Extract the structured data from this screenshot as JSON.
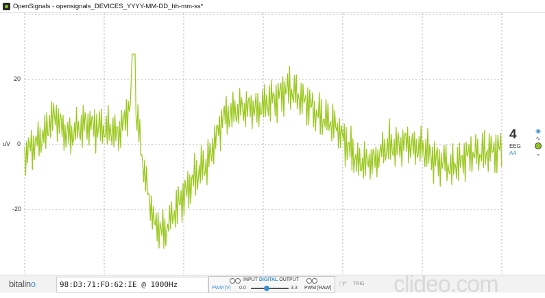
{
  "window": {
    "title": "OpenSignals - opensignals_DEVICES_YYYY-MM-DD_hh-mm-ss*"
  },
  "plot": {
    "y_axis_unit": "uV",
    "y_ticks": [
      "20",
      "0",
      "-20"
    ],
    "trace_color": "#9bc81e",
    "grid_color": "#9a9a9a"
  },
  "channel": {
    "number": "4",
    "type": "EEG",
    "port": "A4"
  },
  "side_icons": [
    "eye-icon",
    "wave-icon",
    "channel-color-dot-icon",
    "chevron-down-icon"
  ],
  "footer": {
    "logo_text": "bitalin",
    "logo_accent": "o",
    "device": "98:D3:71:FD:62:IE @ 1000Hz",
    "io_label_prefix": "INPUT",
    "io_label_digital": "DIGITAL",
    "io_label_suffix": "OUTPUT",
    "pwm_v_label": "PWM [V]",
    "pwm_min": "0.0",
    "pwm_max": "3.3",
    "pwm_raw_label": "PWM [RAW]",
    "trig_label": "TRIG",
    "watermark": "clideo.com"
  },
  "colors": {
    "accent_blue": "#3a8fd0",
    "signal_green": "#9bc81e"
  }
}
